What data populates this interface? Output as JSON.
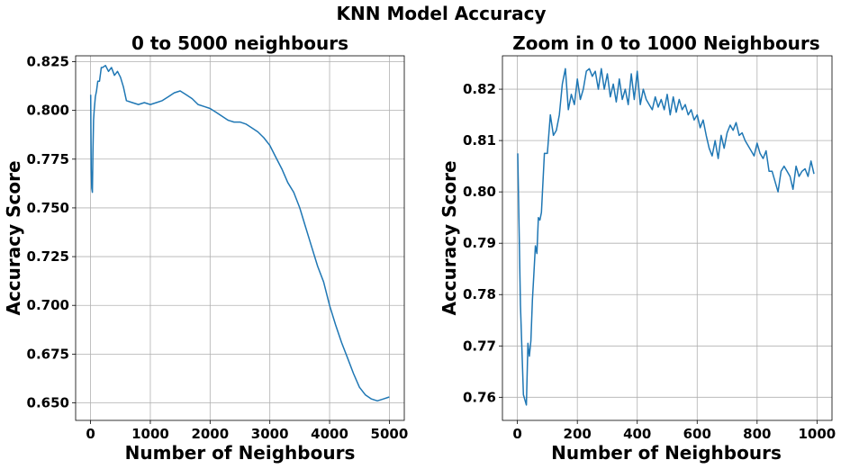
{
  "figure_title": "KNN Model Accuracy",
  "chart_data": [
    {
      "type": "line",
      "title": "0 to 5000 neighbours",
      "xlabel": "Number of Neighbours",
      "ylabel": "Accuracy Score",
      "xlim": [
        -250,
        5250
      ],
      "ylim": [
        0.641,
        0.828
      ],
      "xticks": [
        0,
        1000,
        2000,
        3000,
        4000,
        5000
      ],
      "xtick_labels": [
        "0",
        "1000",
        "2000",
        "3000",
        "4000",
        "5000"
      ],
      "yticks": [
        0.65,
        0.675,
        0.7,
        0.725,
        0.75,
        0.775,
        0.8,
        0.825
      ],
      "ytick_labels": [
        "0.650",
        "0.675",
        "0.700",
        "0.725",
        "0.750",
        "0.775",
        "0.800",
        "0.825"
      ],
      "grid": true,
      "color": "#1f77b4",
      "series": [
        {
          "x": [
            1,
            10,
            20,
            30,
            40,
            50,
            60,
            80,
            100,
            120,
            150,
            180,
            200,
            250,
            300,
            350,
            400,
            450,
            500,
            550,
            600,
            700,
            800,
            900,
            1000,
            1100,
            1200,
            1300,
            1400,
            1500,
            1600,
            1700,
            1800,
            1900,
            2000,
            2100,
            2200,
            2300,
            2400,
            2500,
            2600,
            2700,
            2800,
            2900,
            3000,
            3100,
            3200,
            3300,
            3400,
            3500,
            3600,
            3700,
            3800,
            3900,
            4000,
            4100,
            4200,
            4300,
            4400,
            4500,
            4600,
            4700,
            4800,
            4900,
            5000
          ],
          "y": [
            0.808,
            0.77,
            0.76,
            0.758,
            0.778,
            0.795,
            0.8,
            0.807,
            0.81,
            0.815,
            0.815,
            0.822,
            0.822,
            0.823,
            0.82,
            0.822,
            0.818,
            0.82,
            0.817,
            0.812,
            0.805,
            0.804,
            0.803,
            0.804,
            0.803,
            0.804,
            0.805,
            0.807,
            0.809,
            0.81,
            0.808,
            0.806,
            0.803,
            0.802,
            0.801,
            0.799,
            0.797,
            0.795,
            0.794,
            0.794,
            0.793,
            0.791,
            0.789,
            0.786,
            0.782,
            0.776,
            0.77,
            0.763,
            0.758,
            0.75,
            0.74,
            0.73,
            0.72,
            0.712,
            0.7,
            0.69,
            0.681,
            0.673,
            0.665,
            0.658,
            0.654,
            0.652,
            0.651,
            0.652,
            0.653
          ]
        }
      ]
    },
    {
      "type": "line",
      "title": "Zoom in 0 to 1000 Neighbours",
      "xlabel": "Number of Neighbours",
      "ylabel": "Accuracy Score",
      "xlim": [
        -50,
        1050
      ],
      "ylim": [
        0.7555,
        0.8265
      ],
      "xticks": [
        0,
        200,
        400,
        600,
        800,
        1000
      ],
      "xtick_labels": [
        "0",
        "200",
        "400",
        "600",
        "800",
        "1000"
      ],
      "yticks": [
        0.76,
        0.77,
        0.78,
        0.79,
        0.8,
        0.81,
        0.82
      ],
      "ytick_labels": [
        "0.76",
        "0.77",
        "0.78",
        "0.79",
        "0.80",
        "0.81",
        "0.82"
      ],
      "grid": true,
      "color": "#1f77b4",
      "series": [
        {
          "x": [
            1,
            10,
            20,
            30,
            35,
            40,
            45,
            50,
            55,
            60,
            65,
            70,
            75,
            80,
            90,
            100,
            110,
            120,
            130,
            140,
            150,
            160,
            170,
            180,
            190,
            200,
            210,
            220,
            230,
            240,
            250,
            260,
            270,
            280,
            290,
            300,
            310,
            320,
            330,
            340,
            350,
            360,
            370,
            380,
            390,
            400,
            410,
            420,
            430,
            440,
            450,
            460,
            470,
            480,
            490,
            500,
            510,
            520,
            530,
            540,
            550,
            560,
            570,
            580,
            590,
            600,
            610,
            620,
            630,
            640,
            650,
            660,
            670,
            680,
            690,
            700,
            710,
            720,
            730,
            740,
            750,
            760,
            770,
            780,
            790,
            800,
            810,
            820,
            830,
            840,
            850,
            860,
            870,
            880,
            890,
            900,
            910,
            920,
            930,
            940,
            950,
            960,
            970,
            980,
            990
          ],
          "y": [
            0.8075,
            0.778,
            0.7605,
            0.7585,
            0.7705,
            0.768,
            0.771,
            0.779,
            0.784,
            0.7895,
            0.788,
            0.795,
            0.7945,
            0.796,
            0.8075,
            0.8075,
            0.815,
            0.811,
            0.812,
            0.815,
            0.821,
            0.824,
            0.816,
            0.819,
            0.817,
            0.822,
            0.818,
            0.82,
            0.8235,
            0.824,
            0.8225,
            0.8235,
            0.82,
            0.824,
            0.82,
            0.823,
            0.8185,
            0.821,
            0.8175,
            0.822,
            0.818,
            0.82,
            0.817,
            0.823,
            0.818,
            0.8235,
            0.817,
            0.82,
            0.818,
            0.817,
            0.816,
            0.8185,
            0.8165,
            0.818,
            0.816,
            0.819,
            0.815,
            0.8185,
            0.8155,
            0.818,
            0.816,
            0.817,
            0.815,
            0.816,
            0.814,
            0.815,
            0.8125,
            0.814,
            0.811,
            0.8085,
            0.807,
            0.81,
            0.8065,
            0.811,
            0.8085,
            0.8115,
            0.813,
            0.812,
            0.8135,
            0.811,
            0.8115,
            0.81,
            0.809,
            0.808,
            0.807,
            0.8095,
            0.8075,
            0.8065,
            0.808,
            0.804,
            0.804,
            0.802,
            0.8,
            0.804,
            0.805,
            0.804,
            0.803,
            0.8005,
            0.805,
            0.803,
            0.804,
            0.8045,
            0.803,
            0.806,
            0.8035
          ]
        }
      ]
    }
  ]
}
